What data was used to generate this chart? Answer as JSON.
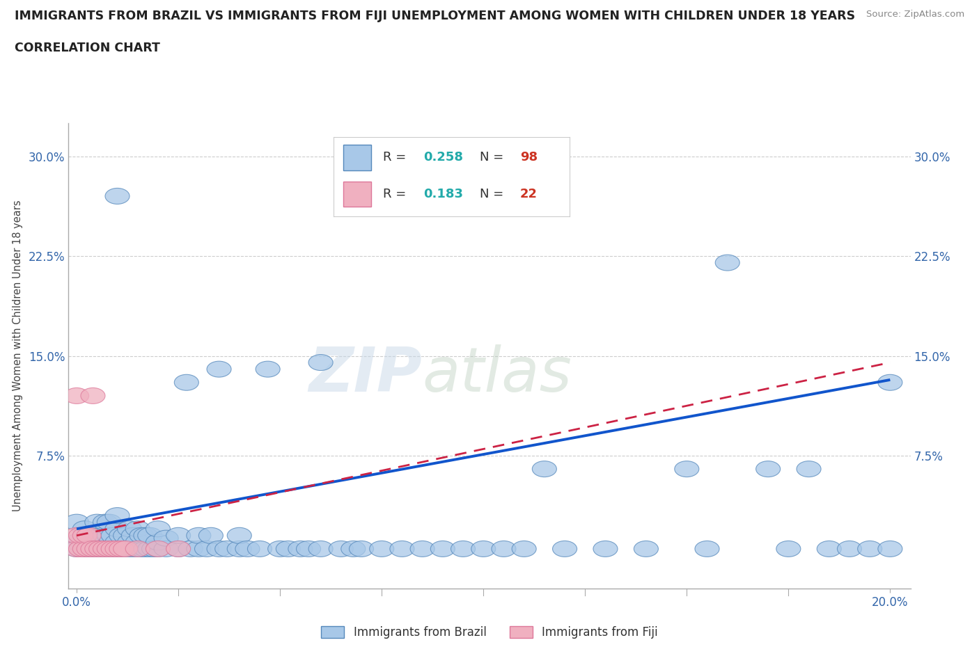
{
  "title_line1": "IMMIGRANTS FROM BRAZIL VS IMMIGRANTS FROM FIJI UNEMPLOYMENT AMONG WOMEN WITH CHILDREN UNDER 18 YEARS",
  "title_line2": "CORRELATION CHART",
  "source_text": "Source: ZipAtlas.com",
  "ylabel": "Unemployment Among Women with Children Under 18 years",
  "xlim": [
    -0.002,
    0.205
  ],
  "ylim": [
    -0.025,
    0.325
  ],
  "yticks": [
    0.0,
    0.075,
    0.15,
    0.225,
    0.3
  ],
  "ytick_labels_left": [
    "",
    "7.5%",
    "15.0%",
    "22.5%",
    "30.0%"
  ],
  "ytick_labels_right": [
    "7.5%",
    "15.0%",
    "22.5%",
    "30.0%"
  ],
  "xtick_labels": [
    "0.0%",
    "20.0%"
  ],
  "watermark_zip": "ZIP",
  "watermark_atlas": "atlas",
  "brazil_color": "#a8c8e8",
  "fiji_color": "#f0b0c0",
  "brazil_edge": "#5588bb",
  "fiji_edge": "#dd7799",
  "trend_brazil_color": "#1155cc",
  "trend_fiji_color": "#cc2244",
  "brazil_R": 0.258,
  "brazil_N": 98,
  "fiji_R": 0.183,
  "fiji_N": 22,
  "brazil_points_x": [
    0.0,
    0.0,
    0.0,
    0.002,
    0.002,
    0.003,
    0.003,
    0.004,
    0.005,
    0.005,
    0.005,
    0.006,
    0.006,
    0.007,
    0.007,
    0.007,
    0.008,
    0.008,
    0.008,
    0.009,
    0.009,
    0.01,
    0.01,
    0.01,
    0.01,
    0.01,
    0.011,
    0.011,
    0.012,
    0.012,
    0.013,
    0.013,
    0.013,
    0.014,
    0.014,
    0.015,
    0.015,
    0.015,
    0.016,
    0.016,
    0.017,
    0.017,
    0.018,
    0.018,
    0.019,
    0.02,
    0.02,
    0.02,
    0.022,
    0.022,
    0.025,
    0.025,
    0.027,
    0.028,
    0.03,
    0.03,
    0.032,
    0.033,
    0.035,
    0.035,
    0.037,
    0.04,
    0.04,
    0.042,
    0.045,
    0.047,
    0.05,
    0.052,
    0.055,
    0.057,
    0.06,
    0.06,
    0.065,
    0.068,
    0.07,
    0.075,
    0.08,
    0.085,
    0.09,
    0.095,
    0.1,
    0.105,
    0.11,
    0.115,
    0.12,
    0.13,
    0.14,
    0.15,
    0.155,
    0.16,
    0.17,
    0.175,
    0.18,
    0.185,
    0.19,
    0.195,
    0.2,
    0.2
  ],
  "brazil_points_y": [
    0.005,
    0.01,
    0.025,
    0.005,
    0.02,
    0.005,
    0.015,
    0.005,
    0.005,
    0.015,
    0.025,
    0.005,
    0.015,
    0.005,
    0.015,
    0.025,
    0.005,
    0.015,
    0.025,
    0.005,
    0.015,
    0.005,
    0.01,
    0.02,
    0.03,
    0.27,
    0.005,
    0.015,
    0.005,
    0.015,
    0.005,
    0.01,
    0.02,
    0.005,
    0.015,
    0.005,
    0.01,
    0.02,
    0.005,
    0.015,
    0.005,
    0.015,
    0.005,
    0.015,
    0.005,
    0.005,
    0.01,
    0.02,
    0.005,
    0.013,
    0.005,
    0.015,
    0.13,
    0.005,
    0.005,
    0.015,
    0.005,
    0.015,
    0.005,
    0.14,
    0.005,
    0.005,
    0.015,
    0.005,
    0.005,
    0.14,
    0.005,
    0.005,
    0.005,
    0.005,
    0.005,
    0.145,
    0.005,
    0.005,
    0.005,
    0.005,
    0.005,
    0.005,
    0.005,
    0.005,
    0.005,
    0.005,
    0.005,
    0.065,
    0.005,
    0.005,
    0.005,
    0.065,
    0.005,
    0.22,
    0.065,
    0.005,
    0.065,
    0.005,
    0.005,
    0.005,
    0.13,
    0.005
  ],
  "fiji_points_x": [
    0.0,
    0.0,
    0.0,
    0.001,
    0.001,
    0.002,
    0.002,
    0.003,
    0.003,
    0.004,
    0.004,
    0.005,
    0.006,
    0.007,
    0.008,
    0.009,
    0.01,
    0.011,
    0.012,
    0.015,
    0.02,
    0.025
  ],
  "fiji_points_y": [
    0.005,
    0.015,
    0.12,
    0.005,
    0.015,
    0.005,
    0.015,
    0.005,
    0.015,
    0.005,
    0.12,
    0.005,
    0.005,
    0.005,
    0.005,
    0.005,
    0.005,
    0.005,
    0.005,
    0.005,
    0.005,
    0.005
  ],
  "brazil_trend_y_start": 0.02,
  "brazil_trend_y_end": 0.132,
  "fiji_trend_y_start": 0.015,
  "fiji_trend_y_end": 0.145,
  "background_color": "#ffffff",
  "grid_color": "#cccccc",
  "title_color": "#222222",
  "label_color": "#3366aa",
  "r_value_color": "#22aaaa",
  "n_value_color": "#cc3322"
}
